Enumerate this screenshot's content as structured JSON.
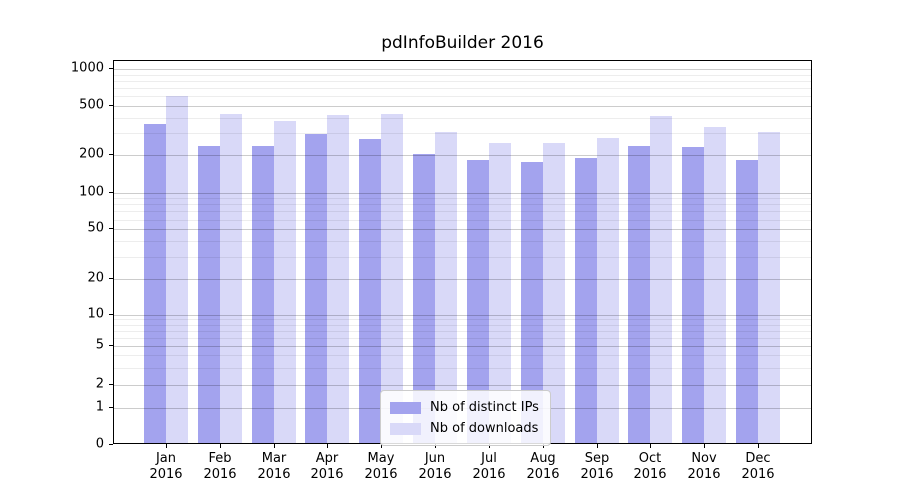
{
  "chart_data": {
    "type": "bar",
    "title": "pdInfoBuilder 2016",
    "categories": [
      {
        "month": "Jan",
        "year": "2016"
      },
      {
        "month": "Feb",
        "year": "2016"
      },
      {
        "month": "Mar",
        "year": "2016"
      },
      {
        "month": "Apr",
        "year": "2016"
      },
      {
        "month": "May",
        "year": "2016"
      },
      {
        "month": "Jun",
        "year": "2016"
      },
      {
        "month": "Jul",
        "year": "2016"
      },
      {
        "month": "Aug",
        "year": "2016"
      },
      {
        "month": "Sep",
        "year": "2016"
      },
      {
        "month": "Oct",
        "year": "2016"
      },
      {
        "month": "Nov",
        "year": "2016"
      },
      {
        "month": "Dec",
        "year": "2016"
      }
    ],
    "series": [
      {
        "name": "Nb of distinct IPs",
        "color": "#a3a3ee",
        "values": [
          343,
          227,
          229,
          285,
          259,
          196,
          175,
          170,
          184,
          228,
          223,
          175
        ]
      },
      {
        "name": "Nb of downloads",
        "color": "#d9d9f8",
        "values": [
          580,
          414,
          363,
          408,
          414,
          296,
          240,
          241,
          264,
          399,
          324,
          296
        ]
      }
    ],
    "yscale": "log-like",
    "ylim": [
      0,
      1000
    ],
    "y_major_ticks": [
      1000,
      500,
      200,
      100,
      50,
      20,
      10,
      5,
      2,
      1,
      0
    ],
    "y_minor_gridline_values": [
      900,
      800,
      700,
      600,
      400,
      300,
      90,
      80,
      70,
      60,
      40,
      30,
      9,
      8,
      7,
      6,
      4,
      3
    ],
    "grid": true,
    "legend_position": "lower-center-inside",
    "scale_anchors_value_to_ypx": [
      [
        1000,
        8
      ],
      [
        500,
        44.7
      ],
      [
        200,
        94.2
      ],
      [
        100,
        131.5
      ],
      [
        50,
        168.2
      ],
      [
        20,
        217.9
      ],
      [
        10,
        253.5
      ],
      [
        5,
        285
      ],
      [
        2,
        324
      ],
      [
        1,
        347
      ],
      [
        0,
        384
      ]
    ]
  }
}
